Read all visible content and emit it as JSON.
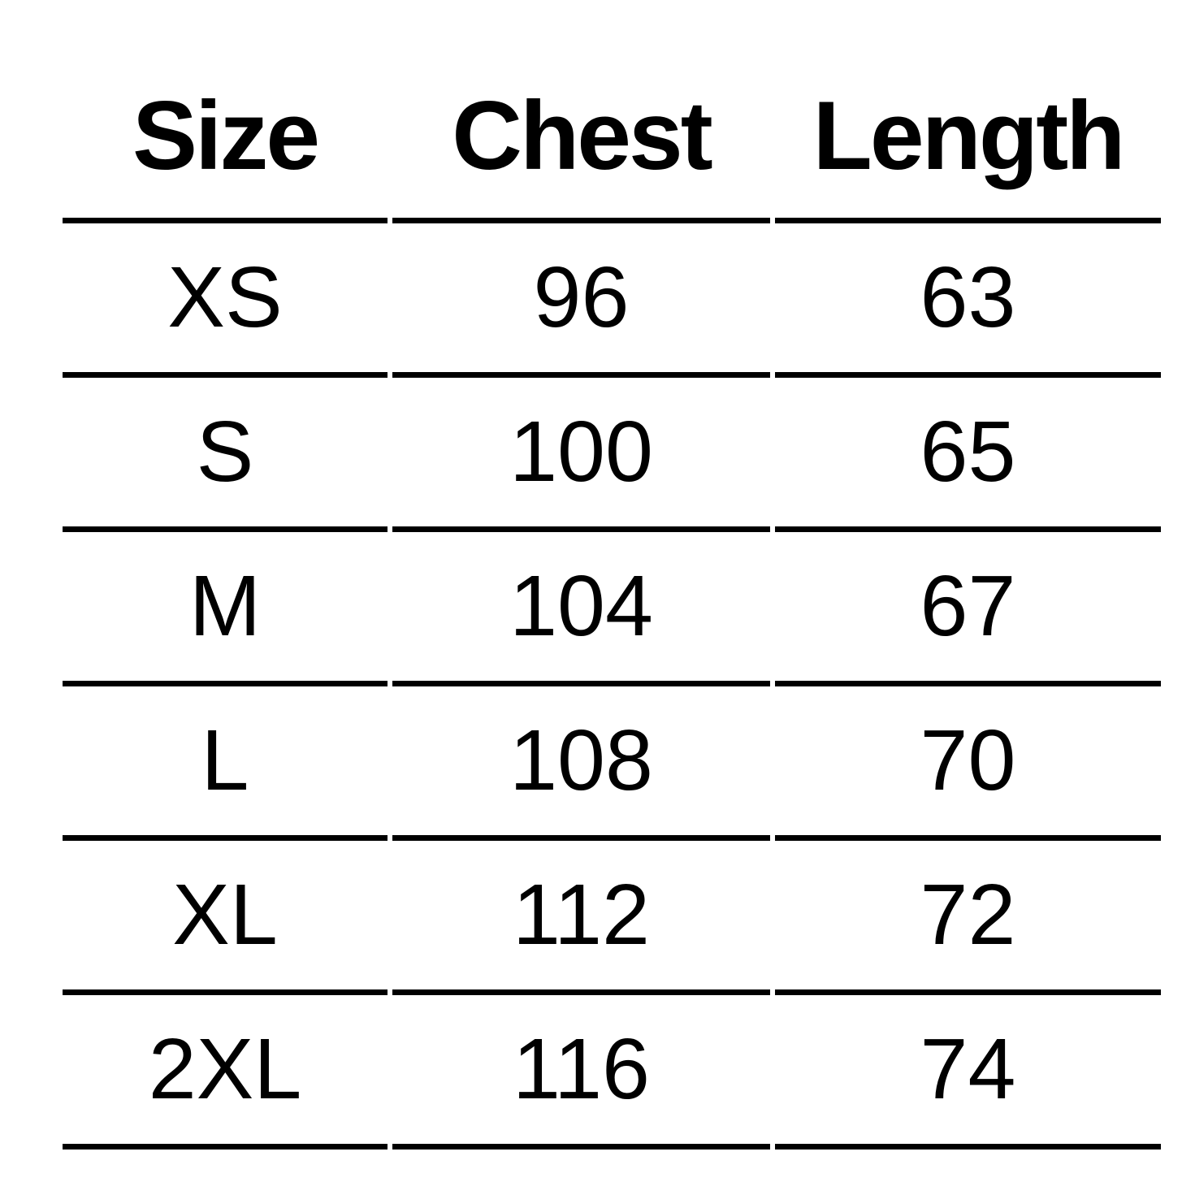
{
  "colors": {
    "background": "#ffffff",
    "text": "#000000",
    "rule": "#000000"
  },
  "chart_data": {
    "type": "table",
    "columns": [
      "Size",
      "Chest",
      "Length"
    ],
    "rows": [
      {
        "size": "XS",
        "chest": "96",
        "length": "63"
      },
      {
        "size": "S",
        "chest": "100",
        "length": "65"
      },
      {
        "size": "M",
        "chest": "104",
        "length": "67"
      },
      {
        "size": "L",
        "chest": "108",
        "length": "70"
      },
      {
        "size": "XL",
        "chest": "112",
        "length": "72"
      },
      {
        "size": "2XL",
        "chest": "116",
        "length": "74"
      }
    ]
  }
}
